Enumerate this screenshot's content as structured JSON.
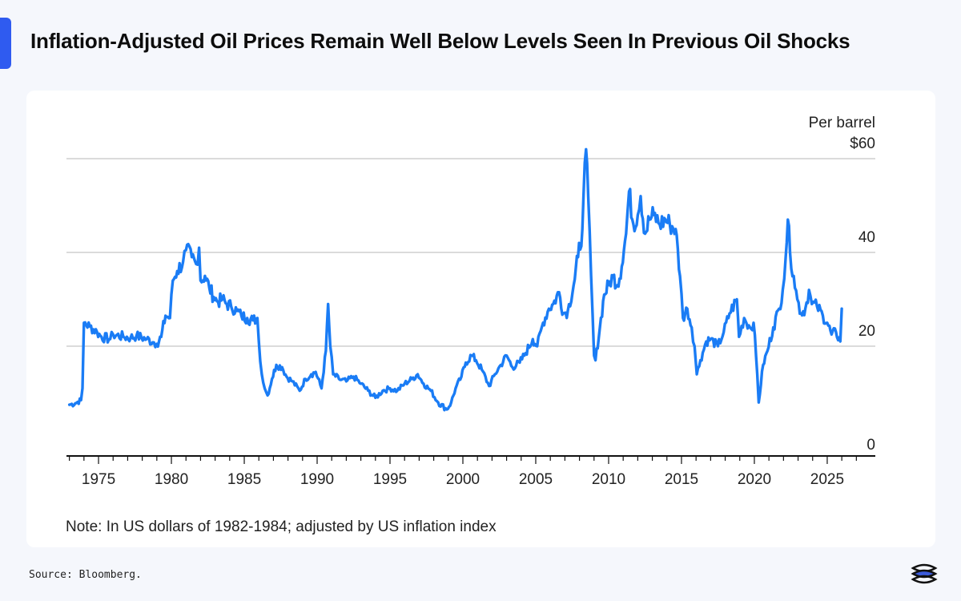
{
  "title": "Inflation-Adjusted Oil Prices Remain Well Below Levels Seen In Previous Oil Shocks",
  "source": "Source: Bloomberg.",
  "colors": {
    "accent": "#2f5bf0",
    "line": "#1a7cf5",
    "grid": "#cfcfcf"
  },
  "chart_data": {
    "type": "line",
    "title": "Inflation-Adjusted Oil Prices Remain Well Below Levels Seen In Previous Oil Shocks",
    "ylabel": "Per barrel",
    "note": "Note: In US dollars of 1982-1984; adjusted by US inflation index",
    "xlim": [
      1972.8,
      2028.3
    ],
    "ylim": [
      0,
      60
    ],
    "yticks": [
      {
        "value": 60,
        "label": "$60"
      },
      {
        "value": 40,
        "label": "40"
      },
      {
        "value": 20,
        "label": "20"
      },
      {
        "value": 0,
        "label": "0"
      }
    ],
    "xticks": [
      {
        "value": 1975,
        "label": "1975"
      },
      {
        "value": 1980,
        "label": "1980"
      },
      {
        "value": 1985,
        "label": "1985"
      },
      {
        "value": 1990,
        "label": "1990"
      },
      {
        "value": 1995,
        "label": "1995"
      },
      {
        "value": 2000,
        "label": "2000"
      },
      {
        "value": 2005,
        "label": "2005"
      },
      {
        "value": 2010,
        "label": "2010"
      },
      {
        "value": 2015,
        "label": "2015"
      },
      {
        "value": 2020,
        "label": "2020"
      },
      {
        "value": 2025,
        "label": "2025"
      }
    ],
    "series": [
      {
        "name": "Inflation-adjusted oil price",
        "points": [
          [
            1973.0,
            7.5
          ],
          [
            1973.4,
            7.8
          ],
          [
            1973.8,
            8.5
          ],
          [
            1973.9,
            11
          ],
          [
            1974.0,
            25
          ],
          [
            1974.4,
            24.2
          ],
          [
            1974.9,
            23
          ],
          [
            1975.2,
            22
          ],
          [
            1975.8,
            21.5
          ],
          [
            1976.0,
            22.5
          ],
          [
            1976.7,
            22
          ],
          [
            1977.2,
            21.8
          ],
          [
            1977.6,
            22.2
          ],
          [
            1978.3,
            21.5
          ],
          [
            1978.8,
            20.8
          ],
          [
            1979.0,
            20.5
          ],
          [
            1979.3,
            22
          ],
          [
            1979.6,
            26.5
          ],
          [
            1979.9,
            26
          ],
          [
            1980.1,
            34
          ],
          [
            1980.4,
            36
          ],
          [
            1980.8,
            38
          ],
          [
            1981.0,
            40.5
          ],
          [
            1981.4,
            39
          ],
          [
            1981.7,
            37.5
          ],
          [
            1981.9,
            41
          ],
          [
            1982.0,
            34
          ],
          [
            1982.3,
            35
          ],
          [
            1982.6,
            32.5
          ],
          [
            1982.9,
            30.5
          ],
          [
            1983.2,
            29.5
          ],
          [
            1983.5,
            30
          ],
          [
            1983.8,
            29
          ],
          [
            1984.1,
            28.5
          ],
          [
            1984.5,
            27.5
          ],
          [
            1984.8,
            26.5
          ],
          [
            1985.2,
            26
          ],
          [
            1985.6,
            25.5
          ],
          [
            1985.9,
            26
          ],
          [
            1986.0,
            21
          ],
          [
            1986.2,
            14
          ],
          [
            1986.4,
            11
          ],
          [
            1986.6,
            9.5
          ],
          [
            1986.9,
            13
          ],
          [
            1987.2,
            16
          ],
          [
            1987.6,
            15.5
          ],
          [
            1987.9,
            13.5
          ],
          [
            1988.3,
            12.5
          ],
          [
            1988.8,
            10.5
          ],
          [
            1989.2,
            13
          ],
          [
            1989.6,
            14
          ],
          [
            1989.9,
            14.5
          ],
          [
            1990.3,
            11
          ],
          [
            1990.6,
            19
          ],
          [
            1990.75,
            29
          ],
          [
            1990.9,
            20
          ],
          [
            1991.1,
            14
          ],
          [
            1991.5,
            13
          ],
          [
            1992.0,
            12.5
          ],
          [
            1992.5,
            13.5
          ],
          [
            1993.0,
            12
          ],
          [
            1993.5,
            10.5
          ],
          [
            1994.0,
            9
          ],
          [
            1994.5,
            10.5
          ],
          [
            1995.0,
            11
          ],
          [
            1995.5,
            10.5
          ],
          [
            1996.0,
            12
          ],
          [
            1996.5,
            13
          ],
          [
            1996.9,
            14
          ],
          [
            1997.3,
            12
          ],
          [
            1997.8,
            10.5
          ],
          [
            1998.3,
            8
          ],
          [
            1998.9,
            6.5
          ],
          [
            1999.2,
            8
          ],
          [
            1999.5,
            11
          ],
          [
            1999.9,
            13.5
          ],
          [
            2000.2,
            16.5
          ],
          [
            2000.6,
            18
          ],
          [
            2000.9,
            17
          ],
          [
            2001.3,
            15
          ],
          [
            2001.8,
            11.5
          ],
          [
            2002.2,
            14
          ],
          [
            2002.6,
            16
          ],
          [
            2003.0,
            18
          ],
          [
            2003.4,
            15.5
          ],
          [
            2003.9,
            16.5
          ],
          [
            2004.3,
            18.5
          ],
          [
            2004.8,
            21.5
          ],
          [
            2005.1,
            20
          ],
          [
            2005.5,
            25
          ],
          [
            2005.9,
            28
          ],
          [
            2006.2,
            29
          ],
          [
            2006.6,
            31.5
          ],
          [
            2006.9,
            27
          ],
          [
            2007.2,
            27.5
          ],
          [
            2007.6,
            33
          ],
          [
            2007.9,
            39
          ],
          [
            2008.2,
            45
          ],
          [
            2008.45,
            62
          ],
          [
            2008.6,
            52
          ],
          [
            2008.8,
            35
          ],
          [
            2009.0,
            18
          ],
          [
            2009.1,
            17
          ],
          [
            2009.4,
            24
          ],
          [
            2009.7,
            31
          ],
          [
            2010.0,
            33
          ],
          [
            2010.3,
            35
          ],
          [
            2010.6,
            33
          ],
          [
            2010.9,
            37
          ],
          [
            2011.2,
            44
          ],
          [
            2011.4,
            53
          ],
          [
            2011.7,
            46
          ],
          [
            2012.0,
            48
          ],
          [
            2012.2,
            52
          ],
          [
            2012.5,
            44
          ],
          [
            2012.8,
            47
          ],
          [
            2013.1,
            48
          ],
          [
            2013.5,
            46
          ],
          [
            2013.9,
            47
          ],
          [
            2014.2,
            46
          ],
          [
            2014.6,
            45
          ],
          [
            2014.9,
            35
          ],
          [
            2015.1,
            26
          ],
          [
            2015.4,
            28
          ],
          [
            2015.7,
            24
          ],
          [
            2015.9,
            20
          ],
          [
            2016.05,
            14
          ],
          [
            2016.3,
            17
          ],
          [
            2016.7,
            21
          ],
          [
            2017.0,
            21.5
          ],
          [
            2017.5,
            20
          ],
          [
            2017.9,
            23
          ],
          [
            2018.3,
            27
          ],
          [
            2018.8,
            30
          ],
          [
            2018.95,
            22
          ],
          [
            2019.3,
            26
          ],
          [
            2019.7,
            24
          ],
          [
            2019.95,
            25
          ],
          [
            2020.2,
            14
          ],
          [
            2020.3,
            8
          ],
          [
            2020.6,
            16
          ],
          [
            2020.9,
            19
          ],
          [
            2021.3,
            24
          ],
          [
            2021.7,
            28
          ],
          [
            2021.95,
            32
          ],
          [
            2022.15,
            39
          ],
          [
            2022.3,
            47
          ],
          [
            2022.45,
            40
          ],
          [
            2022.7,
            35
          ],
          [
            2022.95,
            30
          ],
          [
            2023.2,
            27
          ],
          [
            2023.5,
            28
          ],
          [
            2023.75,
            32
          ],
          [
            2023.95,
            29
          ],
          [
            2024.3,
            28.5
          ],
          [
            2024.7,
            26.5
          ],
          [
            2025.0,
            25
          ],
          [
            2025.3,
            22.5
          ],
          [
            2025.6,
            23
          ],
          [
            2025.9,
            21
          ],
          [
            2026.0,
            28
          ]
        ]
      }
    ]
  }
}
